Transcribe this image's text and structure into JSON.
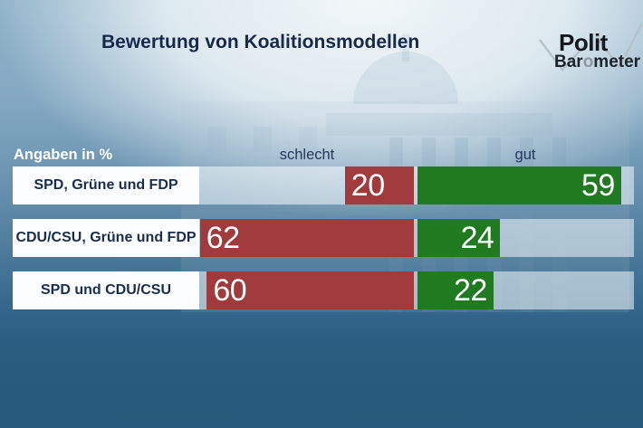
{
  "title": "Bewertung von Koalitionsmodellen",
  "logo": {
    "line1": "Polit",
    "line2_bar": "Bar",
    "line2_o": "o",
    "line2_meter": "meter"
  },
  "header": {
    "unit_label": "Angaben in %",
    "col_negative": "schlecht",
    "col_positive": "gut"
  },
  "colors": {
    "negative_bar": "#a03a3c",
    "positive_bar": "#1f7a20",
    "track": "rgba(252,255,255,0.52)",
    "label_text": "#1a2c50",
    "header_text": "#26365c",
    "unit_text": "#ffffff"
  },
  "chart_data": {
    "type": "bar",
    "orientation": "horizontal-diverging",
    "title": "Bewertung von Koalitionsmodellen",
    "unit": "%",
    "categories": [
      "SPD, Grüne und FDP",
      "CDU/CSU, Grüne und FDP",
      "SPD und CDU/CSU"
    ],
    "series": [
      {
        "name": "schlecht",
        "color": "#a03a3c",
        "values": [
          20,
          62,
          60
        ]
      },
      {
        "name": "gut",
        "color": "#1f7a20",
        "values": [
          59,
          24,
          22
        ]
      }
    ],
    "value_range": [
      0,
      100
    ],
    "legend_position": "top",
    "grid": false
  }
}
